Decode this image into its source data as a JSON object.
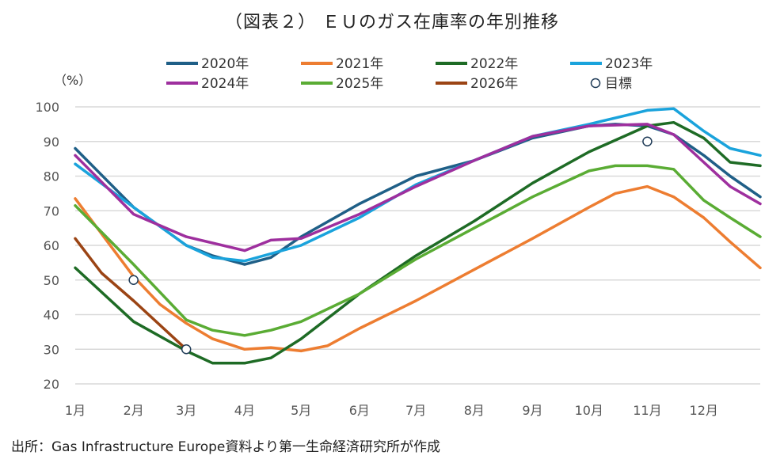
{
  "title": "（図表２） ＥＵのガス在庫率の年別推移",
  "source": "出所：Gas Infrastructure Europe資料より第一生命経済研究所が作成",
  "chart_data": {
    "type": "line",
    "ylabel": "（%）",
    "ylim": [
      20,
      100
    ],
    "yticks": [
      "20",
      "30",
      "40",
      "50",
      "60",
      "70",
      "80",
      "90",
      "100"
    ],
    "xticks": [
      {
        "date": "01-01",
        "label": "1月"
      },
      {
        "date": "02-01",
        "label": "2月"
      },
      {
        "date": "03-01",
        "label": "3月"
      },
      {
        "date": "04-01",
        "label": "4月"
      },
      {
        "date": "05-01",
        "label": "5月"
      },
      {
        "date": "06-01",
        "label": "6月"
      },
      {
        "date": "07-01",
        "label": "7月"
      },
      {
        "date": "08-01",
        "label": "8月"
      },
      {
        "date": "09-01",
        "label": "9月"
      },
      {
        "date": "10-01",
        "label": "10月"
      },
      {
        "date": "11-01",
        "label": "11月"
      },
      {
        "date": "12-01",
        "label": "12月"
      }
    ],
    "grid": true,
    "legend_position": "top",
    "series": [
      {
        "name": "2020年",
        "color": "#1f5f87",
        "points": [
          [
            "01-01",
            88
          ],
          [
            "02-01",
            71
          ],
          [
            "03-01",
            60
          ],
          [
            "03-15",
            57
          ],
          [
            "04-01",
            54.5
          ],
          [
            "04-15",
            56.5
          ],
          [
            "05-01",
            62.5
          ],
          [
            "06-01",
            72
          ],
          [
            "07-01",
            80
          ],
          [
            "08-01",
            84.5
          ],
          [
            "09-01",
            91
          ],
          [
            "10-01",
            94.5
          ],
          [
            "10-15",
            95
          ],
          [
            "11-01",
            94.5
          ],
          [
            "11-15",
            92
          ],
          [
            "12-01",
            86
          ],
          [
            "12-15",
            80
          ],
          [
            "12-31",
            74
          ]
        ]
      },
      {
        "name": "2021年",
        "color": "#ed7d31",
        "points": [
          [
            "01-01",
            73.5
          ],
          [
            "02-01",
            51
          ],
          [
            "02-15",
            43
          ],
          [
            "03-01",
            37.5
          ],
          [
            "03-15",
            33
          ],
          [
            "04-01",
            30
          ],
          [
            "04-15",
            30.5
          ],
          [
            "05-01",
            29.5
          ],
          [
            "05-15",
            31
          ],
          [
            "06-01",
            36
          ],
          [
            "07-01",
            44
          ],
          [
            "08-01",
            53
          ],
          [
            "09-01",
            62
          ],
          [
            "10-01",
            71
          ],
          [
            "10-15",
            75
          ],
          [
            "11-01",
            77
          ],
          [
            "11-15",
            74
          ],
          [
            "12-01",
            68
          ],
          [
            "12-15",
            61
          ],
          [
            "12-31",
            53.5
          ]
        ]
      },
      {
        "name": "2022年",
        "color": "#1e6b25",
        "points": [
          [
            "01-01",
            53.5
          ],
          [
            "02-01",
            38
          ],
          [
            "03-01",
            29.5
          ],
          [
            "03-15",
            26
          ],
          [
            "04-01",
            26
          ],
          [
            "04-15",
            27.5
          ],
          [
            "05-01",
            33
          ],
          [
            "06-01",
            46
          ],
          [
            "07-01",
            57
          ],
          [
            "08-01",
            67
          ],
          [
            "09-01",
            78
          ],
          [
            "10-01",
            87
          ],
          [
            "11-01",
            94.5
          ],
          [
            "11-15",
            95.5
          ],
          [
            "12-01",
            91
          ],
          [
            "12-15",
            84
          ],
          [
            "12-31",
            83
          ]
        ]
      },
      {
        "name": "2023年",
        "color": "#1aa3dc",
        "points": [
          [
            "01-01",
            83.5
          ],
          [
            "02-01",
            71
          ],
          [
            "03-01",
            60
          ],
          [
            "03-15",
            56.5
          ],
          [
            "04-01",
            55.5
          ],
          [
            "05-01",
            60
          ],
          [
            "06-01",
            68
          ],
          [
            "07-01",
            77.5
          ],
          [
            "08-01",
            84.5
          ],
          [
            "09-01",
            91.5
          ],
          [
            "10-01",
            95
          ],
          [
            "11-01",
            99
          ],
          [
            "11-15",
            99.5
          ],
          [
            "12-01",
            93
          ],
          [
            "12-15",
            88
          ],
          [
            "12-31",
            86
          ]
        ]
      },
      {
        "name": "2024年",
        "color": "#9e2f9e",
        "points": [
          [
            "01-01",
            86
          ],
          [
            "02-01",
            69
          ],
          [
            "03-01",
            62.5
          ],
          [
            "04-01",
            58.5
          ],
          [
            "04-15",
            61.5
          ],
          [
            "05-01",
            62
          ],
          [
            "06-01",
            69
          ],
          [
            "07-01",
            77
          ],
          [
            "08-01",
            84.5
          ],
          [
            "09-01",
            91.5
          ],
          [
            "10-01",
            94.5
          ],
          [
            "11-01",
            95
          ],
          [
            "11-15",
            92
          ],
          [
            "12-01",
            84
          ],
          [
            "12-15",
            77
          ],
          [
            "12-31",
            72
          ]
        ]
      },
      {
        "name": "2025年",
        "color": "#5aac34",
        "points": [
          [
            "01-01",
            71.5
          ],
          [
            "02-01",
            54.5
          ],
          [
            "03-01",
            38.5
          ],
          [
            "03-15",
            35.5
          ],
          [
            "04-01",
            34
          ],
          [
            "04-15",
            35.5
          ],
          [
            "05-01",
            38
          ],
          [
            "06-01",
            46
          ],
          [
            "07-01",
            56
          ],
          [
            "08-01",
            65
          ],
          [
            "09-01",
            74
          ],
          [
            "10-01",
            81.5
          ],
          [
            "10-15",
            83
          ],
          [
            "11-01",
            83
          ],
          [
            "11-15",
            82
          ],
          [
            "12-01",
            73
          ],
          [
            "12-15",
            68
          ],
          [
            "12-31",
            62.5
          ]
        ]
      },
      {
        "name": "2026年",
        "color": "#9b4414",
        "points": [
          [
            "01-01",
            62
          ],
          [
            "01-15",
            52
          ],
          [
            "02-01",
            44
          ],
          [
            "02-15",
            37
          ],
          [
            "03-01",
            30
          ]
        ]
      }
    ],
    "targets": {
      "name": "目標",
      "color": "#1f3b57",
      "points": [
        [
          "02-01",
          50
        ],
        [
          "03-01",
          30
        ],
        [
          "11-01",
          90
        ]
      ]
    }
  }
}
